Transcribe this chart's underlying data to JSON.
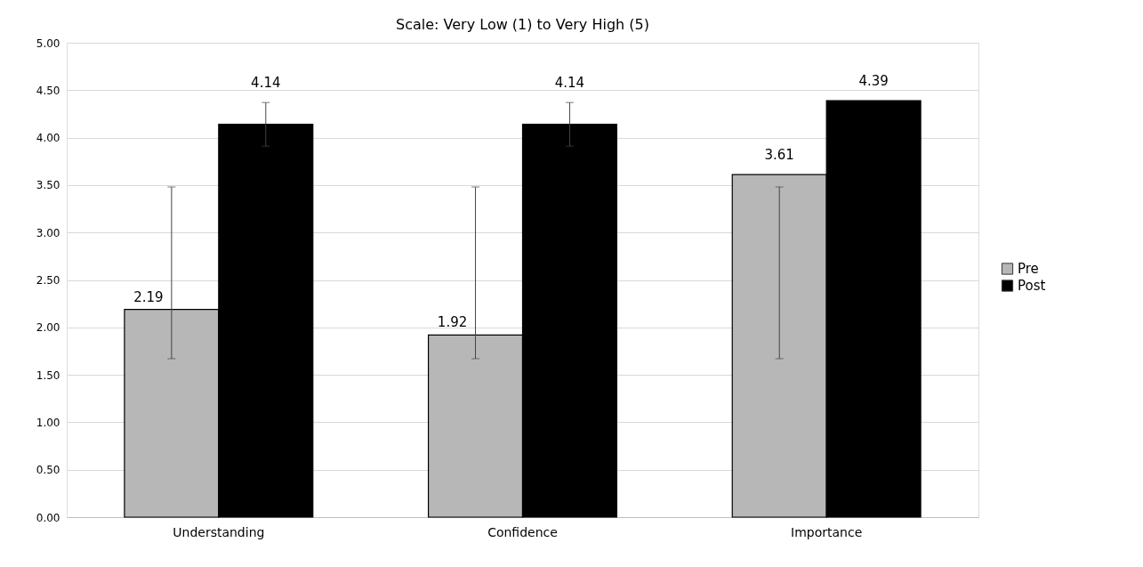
{
  "chart_data": {
    "type": "bar",
    "title": "Scale: Very Low (1) to Very High (5)",
    "categories": [
      "Understanding",
      "Confidence",
      "Importance"
    ],
    "series": [
      {
        "name": "Pre",
        "color": "#b7b7b7",
        "values": [
          2.19,
          1.92,
          3.61
        ],
        "errors": [
          [
            1.67,
            3.48
          ],
          [
            1.67,
            3.48
          ],
          [
            1.67,
            3.48
          ]
        ]
      },
      {
        "name": "Post",
        "color": "#000000",
        "values": [
          4.14,
          4.14,
          4.39
        ],
        "errors": [
          0.23,
          0.23,
          null
        ]
      }
    ],
    "ylim": [
      0,
      5
    ],
    "yticks": [
      {
        "value": 0,
        "label": "0.00"
      },
      {
        "value": 0.5,
        "label": "0.50"
      },
      {
        "value": 1,
        "label": "1.00"
      },
      {
        "value": 1.5,
        "label": "1.50"
      },
      {
        "value": 2,
        "label": "2.00"
      },
      {
        "value": 2.5,
        "label": "2.50"
      },
      {
        "value": 3,
        "label": "3.00"
      },
      {
        "value": 3.5,
        "label": "3.50"
      },
      {
        "value": 4,
        "label": "4.00"
      },
      {
        "value": 4.5,
        "label": "4.50"
      },
      {
        "value": 5,
        "label": "5.00"
      }
    ],
    "grid": "y",
    "legend": "right",
    "data_labels": true
  }
}
